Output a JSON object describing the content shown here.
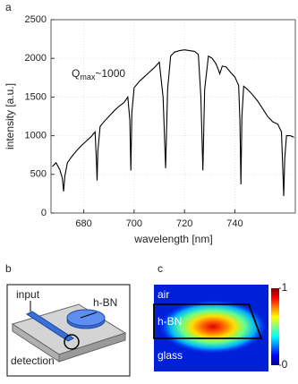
{
  "chart_data": {
    "type": "line",
    "panel_label": "a",
    "xlabel": "wavelength [nm]",
    "ylabel": "intensity [a.u.]",
    "annotation": {
      "text": "Q",
      "sub": "max",
      "rest": "~1000"
    },
    "x": [
      667.5,
      669,
      670.5,
      671.5,
      672,
      672.5,
      673.5,
      675,
      677,
      679,
      681,
      683,
      684.5,
      685,
      685.3,
      685.6,
      686.5,
      688,
      690,
      692,
      694,
      696,
      697.5,
      698.3,
      698.7,
      699.1,
      700,
      702,
      704,
      706,
      708,
      710,
      711.5,
      712.5,
      713.3,
      714.5,
      716,
      718,
      720,
      722,
      724,
      725.5,
      726.5,
      727.3,
      728,
      729.5,
      731,
      732.5,
      733.5,
      734,
      735,
      736.5,
      738,
      740,
      741.5,
      742,
      742.4,
      742.8,
      743.5,
      745,
      747,
      749,
      751,
      753,
      755,
      757,
      758.5,
      759,
      759.4,
      759.8,
      760.5,
      762,
      763.5
    ],
    "values": [
      600,
      650,
      560,
      450,
      280,
      480,
      650,
      720,
      800,
      870,
      930,
      990,
      1050,
      700,
      420,
      800,
      1120,
      1180,
      1250,
      1320,
      1380,
      1430,
      1500,
      1200,
      550,
      1300,
      1620,
      1700,
      1760,
      1820,
      1880,
      1950,
      1500,
      580,
      1600,
      2030,
      2080,
      2100,
      2110,
      2100,
      2090,
      2050,
      1500,
      550,
      1600,
      2030,
      2000,
      1930,
      1850,
      1800,
      1900,
      1890,
      1830,
      1760,
      1650,
      1200,
      370,
      1250,
      1640,
      1600,
      1530,
      1450,
      1350,
      1250,
      1180,
      1150,
      1050,
      600,
      220,
      700,
      1000,
      1000,
      980
    ],
    "color": "#000000",
    "xlim": [
      667,
      764
    ],
    "xticks": [
      680,
      700,
      720,
      740
    ],
    "ylim": [
      0,
      2500
    ],
    "yticks": [
      0,
      500,
      1000,
      1500,
      2000,
      2500
    ],
    "grid": true
  },
  "panel_b": {
    "panel_label": "b",
    "labels": [
      "input",
      "h-BN",
      "detection"
    ]
  },
  "panel_c": {
    "panel_label": "c",
    "regions": [
      "air",
      "h-BN",
      "glass"
    ],
    "colorbar_ticks": [
      0,
      1
    ],
    "colorbar_lim": [
      0,
      1
    ]
  }
}
